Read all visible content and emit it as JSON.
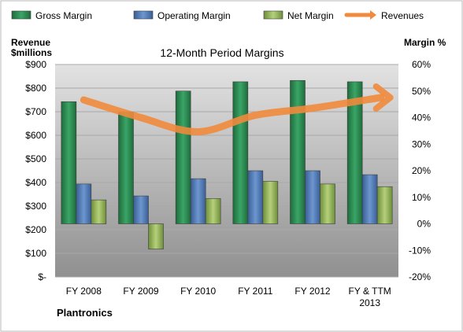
{
  "chart_data": {
    "type": "bar",
    "title": "12-Month Period Margins",
    "company": "Plantronics",
    "categories": [
      "FY 2008",
      "FY 2009",
      "FY 2010",
      "FY 2011",
      "FY 2012",
      "FY & TTM 2013"
    ],
    "left_axis": {
      "label_line1": "Revenue",
      "label_line2": "$millions",
      "range": [
        0,
        900
      ],
      "ticks": [
        "$-",
        "$100",
        "$200",
        "$300",
        "$400",
        "$500",
        "$600",
        "$700",
        "$800",
        "$900"
      ]
    },
    "right_axis": {
      "label": "Margin %",
      "range": [
        -20,
        60
      ],
      "ticks": [
        "-20%",
        "-10%",
        "0%",
        "10%",
        "20%",
        "30%",
        "40%",
        "50%",
        "60%"
      ]
    },
    "grid": true,
    "legend_position": "top",
    "series": [
      {
        "name": "Gross Margin",
        "axis": "right",
        "kind": "bar",
        "color": "#2e8b57",
        "values": [
          46,
          42,
          50,
          53.5,
          54,
          53.5
        ]
      },
      {
        "name": "Operating Margin",
        "axis": "right",
        "kind": "bar",
        "color": "#4f81bd",
        "values": [
          15,
          10.5,
          17,
          20,
          20,
          18.5
        ]
      },
      {
        "name": "Net Margin",
        "axis": "right",
        "kind": "bar",
        "color": "#9bbb59",
        "values": [
          9,
          -9.5,
          9.5,
          16,
          15,
          14
        ]
      },
      {
        "name": "Revenues",
        "axis": "left",
        "kind": "line",
        "color": "#f08a3c",
        "values": [
          750,
          675,
          615,
          685,
          715,
          760
        ]
      }
    ]
  }
}
